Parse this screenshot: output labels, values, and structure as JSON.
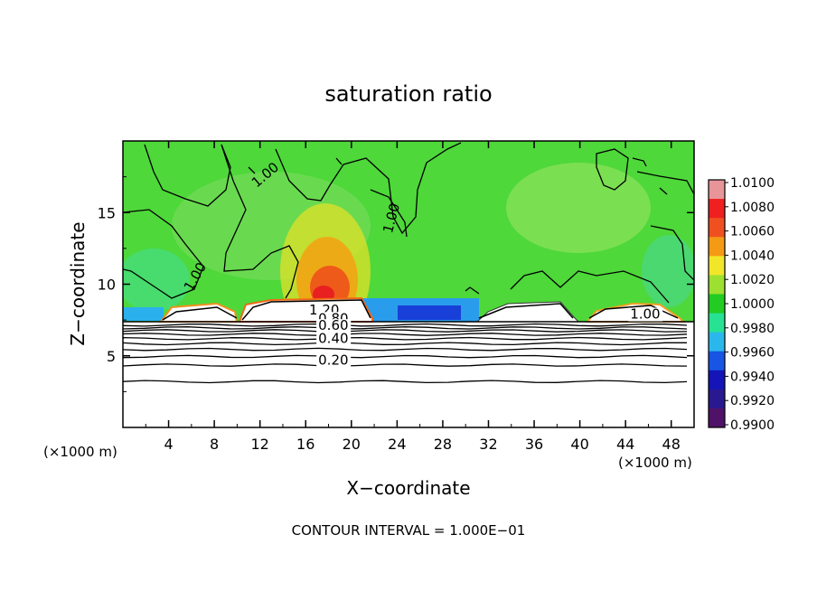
{
  "chart_data": {
    "type": "heatmap",
    "title": "saturation ratio",
    "xlabel": "X−coordinate",
    "ylabel": "Z−coordinate",
    "x_unit_left": "(×1000 m)",
    "x_unit_right": "(×1000 m)",
    "xlim": [
      0,
      50
    ],
    "ylim": [
      0,
      20
    ],
    "x_ticks": [
      4,
      8,
      12,
      16,
      20,
      24,
      28,
      32,
      36,
      40,
      44,
      48
    ],
    "y_ticks": [
      5,
      10,
      15
    ],
    "footer": "CONTOUR INTERVAL = 1.000E−01",
    "colorbar": {
      "min": 0.99,
      "max": 1.01,
      "labels": [
        "1.0100",
        "1.0080",
        "1.0060",
        "1.0040",
        "1.0020",
        "1.0000",
        "0.9980",
        "0.9960",
        "0.9940",
        "0.9920",
        "0.9900"
      ],
      "colors": [
        "#e8959a",
        "#ee2020",
        "#f05020",
        "#f49a14",
        "#f2e62a",
        "#9ee030",
        "#22cc22",
        "#26e292",
        "#2ab8ec",
        "#1855e4",
        "#1414b8",
        "#2a1890",
        "#501268"
      ]
    },
    "contour_labels": [
      {
        "text": "1.00",
        "x": 11.2,
        "z": 17.3
      },
      {
        "text": "1.00",
        "x": 22.3,
        "z": 14.3
      },
      {
        "text": "1.00",
        "x": 5.1,
        "z": 10.2
      },
      {
        "text": "1.00",
        "x": 44.4,
        "z": 7.6
      },
      {
        "text": "1.20",
        "x": 16.3,
        "z": 7.9
      },
      {
        "text": "0.80",
        "x": 17.1,
        "z": 7.3
      },
      {
        "text": "0.60",
        "x": 17.1,
        "z": 6.8
      },
      {
        "text": "0.40",
        "x": 17.1,
        "z": 5.9
      },
      {
        "text": "0.20",
        "x": 17.1,
        "z": 4.4
      }
    ],
    "lower_contour_levels_z": [
      7.15,
      6.95,
      6.75,
      6.5,
      6.2,
      5.85,
      5.45,
      4.95,
      4.35,
      3.2
    ]
  }
}
